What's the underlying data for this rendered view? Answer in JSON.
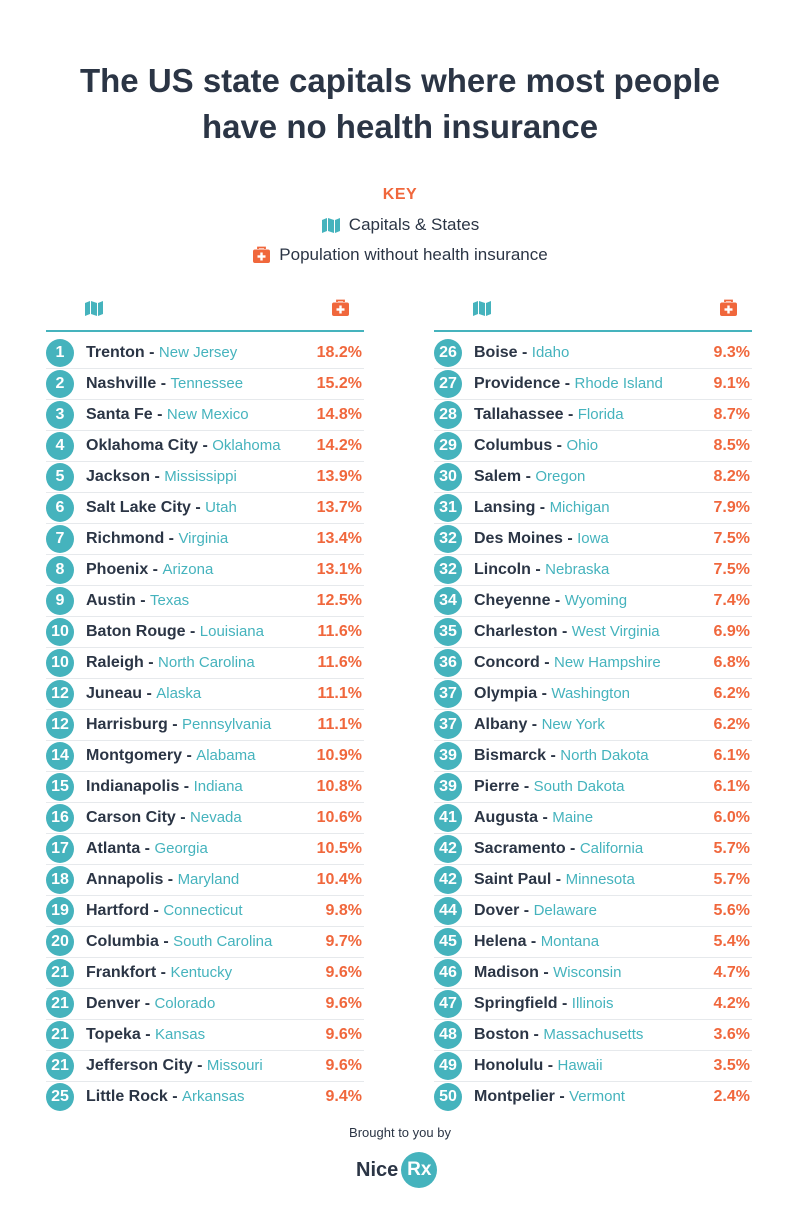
{
  "title_line1": "The US state capitals where most people",
  "title_line2": "have no health insurance",
  "key": {
    "heading": "KEY",
    "capitals_label": "Capitals & States",
    "population_label": "Population without health insurance",
    "map_icon": "map-icon",
    "kit_icon": "first-aid-kit-icon"
  },
  "colors": {
    "teal": "#45b3bd",
    "orange": "#f0673c",
    "navy": "#2b3545"
  },
  "left_rows": [
    {
      "rank": "1",
      "city": "Trenton",
      "state": "New Jersey",
      "pct": "18.2%"
    },
    {
      "rank": "2",
      "city": "Nashville",
      "state": "Tennessee",
      "pct": "15.2%"
    },
    {
      "rank": "3",
      "city": "Santa Fe",
      "state": "New Mexico",
      "pct": "14.8%"
    },
    {
      "rank": "4",
      "city": "Oklahoma City",
      "state": "Oklahoma",
      "pct": "14.2%"
    },
    {
      "rank": "5",
      "city": "Jackson",
      "state": "Mississippi",
      "pct": "13.9%"
    },
    {
      "rank": "6",
      "city": "Salt Lake City",
      "state": "Utah",
      "pct": "13.7%"
    },
    {
      "rank": "7",
      "city": "Richmond",
      "state": "Virginia",
      "pct": "13.4%"
    },
    {
      "rank": "8",
      "city": "Phoenix",
      "state": "Arizona",
      "pct": "13.1%"
    },
    {
      "rank": "9",
      "city": "Austin",
      "state": "Texas",
      "pct": "12.5%"
    },
    {
      "rank": "10",
      "city": "Baton Rouge",
      "state": "Louisiana",
      "pct": "11.6%"
    },
    {
      "rank": "10",
      "city": "Raleigh",
      "state": "North Carolina",
      "pct": "11.6%"
    },
    {
      "rank": "12",
      "city": "Juneau",
      "state": "Alaska",
      "pct": "11.1%"
    },
    {
      "rank": "12",
      "city": "Harrisburg",
      "state": "Pennsylvania",
      "pct": "11.1%"
    },
    {
      "rank": "14",
      "city": "Montgomery",
      "state": "Alabama",
      "pct": "10.9%"
    },
    {
      "rank": "15",
      "city": "Indianapolis",
      "state": "Indiana",
      "pct": "10.8%"
    },
    {
      "rank": "16",
      "city": "Carson City",
      "state": "Nevada",
      "pct": "10.6%"
    },
    {
      "rank": "17",
      "city": "Atlanta",
      "state": "Georgia",
      "pct": "10.5%"
    },
    {
      "rank": "18",
      "city": "Annapolis",
      "state": "Maryland",
      "pct": "10.4%"
    },
    {
      "rank": "19",
      "city": "Hartford",
      "state": "Connecticut",
      "pct": "9.8%"
    },
    {
      "rank": "20",
      "city": "Columbia",
      "state": "South Carolina",
      "pct": "9.7%"
    },
    {
      "rank": "21",
      "city": "Frankfort",
      "state": "Kentucky",
      "pct": "9.6%"
    },
    {
      "rank": "21",
      "city": "Denver",
      "state": "Colorado",
      "pct": "9.6%"
    },
    {
      "rank": "21",
      "city": "Topeka",
      "state": "Kansas",
      "pct": "9.6%"
    },
    {
      "rank": "21",
      "city": "Jefferson City",
      "state": "Missouri",
      "pct": "9.6%"
    },
    {
      "rank": "25",
      "city": "Little Rock",
      "state": "Arkansas",
      "pct": "9.4%"
    }
  ],
  "right_rows": [
    {
      "rank": "26",
      "city": "Boise",
      "state": "Idaho",
      "pct": "9.3%"
    },
    {
      "rank": "27",
      "city": "Providence",
      "state": "Rhode Island",
      "pct": "9.1%"
    },
    {
      "rank": "28",
      "city": "Tallahassee",
      "state": "Florida",
      "pct": "8.7%"
    },
    {
      "rank": "29",
      "city": "Columbus",
      "state": "Ohio",
      "pct": "8.5%"
    },
    {
      "rank": "30",
      "city": "Salem",
      "state": "Oregon",
      "pct": "8.2%"
    },
    {
      "rank": "31",
      "city": "Lansing",
      "state": "Michigan",
      "pct": "7.9%"
    },
    {
      "rank": "32",
      "city": "Des Moines",
      "state": "Iowa",
      "pct": "7.5%"
    },
    {
      "rank": "32",
      "city": "Lincoln",
      "state": "Nebraska",
      "pct": "7.5%"
    },
    {
      "rank": "34",
      "city": "Cheyenne",
      "state": "Wyoming",
      "pct": "7.4%"
    },
    {
      "rank": "35",
      "city": "Charleston",
      "state": "West Virginia",
      "pct": "6.9%"
    },
    {
      "rank": "36",
      "city": "Concord",
      "state": "New Hampshire",
      "pct": "6.8%"
    },
    {
      "rank": "37",
      "city": "Olympia",
      "state": "Washington",
      "pct": "6.2%"
    },
    {
      "rank": "37",
      "city": "Albany",
      "state": "New York",
      "pct": "6.2%"
    },
    {
      "rank": "39",
      "city": "Bismarck",
      "state": "North Dakota",
      "pct": "6.1%"
    },
    {
      "rank": "39",
      "city": "Pierre",
      "state": "South Dakota",
      "pct": "6.1%"
    },
    {
      "rank": "41",
      "city": "Augusta",
      "state": "Maine",
      "pct": "6.0%"
    },
    {
      "rank": "42",
      "city": "Sacramento",
      "state": "California",
      "pct": "5.7%"
    },
    {
      "rank": "42",
      "city": "Saint Paul",
      "state": "Minnesota",
      "pct": "5.7%"
    },
    {
      "rank": "44",
      "city": "Dover",
      "state": "Delaware",
      "pct": "5.6%"
    },
    {
      "rank": "45",
      "city": "Helena",
      "state": "Montana",
      "pct": "5.4%"
    },
    {
      "rank": "46",
      "city": "Madison",
      "state": "Wisconsin",
      "pct": "4.7%"
    },
    {
      "rank": "47",
      "city": "Springfield",
      "state": "Illinois",
      "pct": "4.2%"
    },
    {
      "rank": "48",
      "city": "Boston",
      "state": "Massachusetts",
      "pct": "3.6%"
    },
    {
      "rank": "49",
      "city": "Honolulu",
      "state": "Hawaii",
      "pct": "3.5%"
    },
    {
      "rank": "50",
      "city": "Montpelier",
      "state": "Vermont",
      "pct": "2.4%"
    }
  ],
  "footer": {
    "brought_by": "Brought to you by",
    "logo_nice": "Nice",
    "logo_rx": "Rx"
  }
}
